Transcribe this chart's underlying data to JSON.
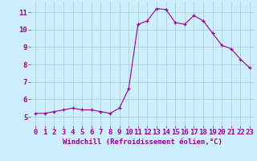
{
  "x": [
    0,
    1,
    2,
    3,
    4,
    5,
    6,
    7,
    8,
    9,
    10,
    11,
    12,
    13,
    14,
    15,
    16,
    17,
    18,
    19,
    20,
    21,
    22,
    23
  ],
  "y": [
    5.2,
    5.2,
    5.3,
    5.4,
    5.5,
    5.4,
    5.4,
    5.3,
    5.2,
    5.5,
    6.6,
    10.3,
    10.5,
    11.2,
    11.15,
    10.4,
    10.3,
    10.8,
    10.5,
    9.8,
    9.1,
    8.9,
    8.3,
    7.8
  ],
  "line_color": "#990099",
  "marker": "+",
  "marker_color": "#990099",
  "bg_color": "#cceeff",
  "grid_color": "#aacccc",
  "xlabel": "Windchill (Refroidissement éolien,°C)",
  "xlabel_color": "#990099",
  "xlabel_fontsize": 6.5,
  "tick_color": "#990099",
  "tick_fontsize": 6.5,
  "ylim": [
    4.5,
    11.6
  ],
  "xlim": [
    -0.5,
    23.5
  ],
  "yticks": [
    5,
    6,
    7,
    8,
    9,
    10,
    11
  ],
  "xticks": [
    0,
    1,
    2,
    3,
    4,
    5,
    6,
    7,
    8,
    9,
    10,
    11,
    12,
    13,
    14,
    15,
    16,
    17,
    18,
    19,
    20,
    21,
    22,
    23
  ]
}
